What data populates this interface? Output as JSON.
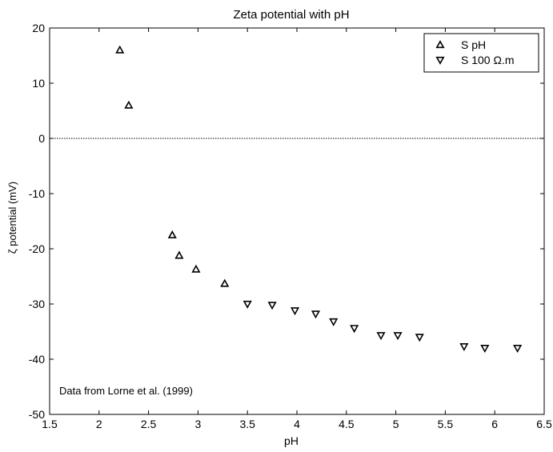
{
  "chart_data": {
    "type": "scatter",
    "title": "Zeta potential with pH",
    "xlabel": "pH",
    "ylabel": "ζ potential (mV)",
    "xlim": [
      1.5,
      6.5
    ],
    "ylim": [
      -50,
      20
    ],
    "xticks": [
      1.5,
      2,
      2.5,
      3,
      3.5,
      4,
      4.5,
      5,
      5.5,
      6,
      6.5
    ],
    "yticks": [
      20,
      10,
      0,
      -10,
      -20,
      -30,
      -40,
      -50
    ],
    "grid": false,
    "zero_line": true,
    "legend_position": "top-right",
    "annotation": "Data from Lorne et al. (1999)",
    "series": [
      {
        "name": "S pH",
        "marker": "triangle-up",
        "x": [
          2.21,
          2.3,
          2.74,
          2.81,
          2.98,
          3.27
        ],
        "y": [
          16,
          6,
          -17.5,
          -21.2,
          -23.7,
          -26.3
        ]
      },
      {
        "name": "S 100 Ω.m",
        "marker": "triangle-down",
        "x": [
          3.5,
          3.75,
          3.98,
          4.19,
          4.37,
          4.58,
          4.85,
          5.02,
          5.24,
          5.69,
          5.9,
          6.23
        ],
        "y": [
          -30,
          -30.2,
          -31.2,
          -31.8,
          -33.2,
          -34.4,
          -35.7,
          -35.7,
          -36,
          -37.7,
          -38,
          -38
        ]
      }
    ]
  }
}
